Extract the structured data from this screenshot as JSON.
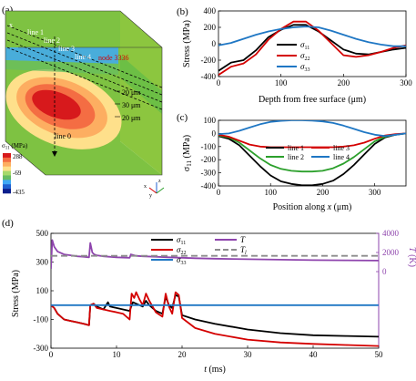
{
  "panel_labels": {
    "a": "(a)",
    "b": "(b)",
    "c": "(c)",
    "d": "(d)"
  },
  "panel_a": {
    "line_labels": [
      "line 1",
      "line 2",
      "line 3",
      "line 4",
      "line 0"
    ],
    "node_label": "node 3336",
    "depth_labels": [
      "20 μm",
      "30 μm",
      "20 μm"
    ],
    "colorbar": {
      "title": "σ11 (MPa)",
      "tick_labels": [
        "288",
        "-69",
        "-435"
      ],
      "colors": [
        "#d7191c",
        "#f46d43",
        "#fdae61",
        "#fee08b",
        "#a6d96a",
        "#66bd63",
        "#3fa9f5",
        "#1f60d0",
        "#0a1e8c"
      ]
    },
    "axes": {
      "x": "x",
      "y": "y",
      "z": "z"
    }
  },
  "chart_data": [
    {
      "id": "b",
      "type": "line",
      "xlabel": "Depth from free surface (μm)",
      "ylabel": "Stress (MPa)",
      "xlim": [
        0,
        300
      ],
      "ylim": [
        -400,
        400
      ],
      "xticks": [
        0,
        100,
        200,
        300
      ],
      "yticks": [
        -400,
        -200,
        0,
        200,
        400
      ],
      "series": [
        {
          "name": "σ11",
          "color": "#000000",
          "x": [
            0,
            20,
            40,
            60,
            80,
            100,
            120,
            140,
            160,
            180,
            200,
            220,
            240,
            260,
            280,
            300
          ],
          "y": [
            -330,
            -230,
            -200,
            -80,
            80,
            170,
            230,
            230,
            150,
            40,
            -70,
            -120,
            -130,
            -100,
            -70,
            -50
          ]
        },
        {
          "name": "σ22",
          "color": "#d40000",
          "x": [
            0,
            20,
            40,
            60,
            80,
            100,
            120,
            140,
            160,
            180,
            200,
            220,
            240,
            260,
            280,
            300
          ],
          "y": [
            -380,
            -280,
            -240,
            -130,
            50,
            180,
            270,
            270,
            160,
            10,
            -140,
            -160,
            -140,
            -100,
            -50,
            -20
          ]
        },
        {
          "name": "σ33",
          "color": "#1f77c4",
          "x": [
            0,
            20,
            40,
            60,
            80,
            100,
            120,
            140,
            160,
            180,
            200,
            220,
            240,
            260,
            280,
            300
          ],
          "y": [
            -20,
            10,
            60,
            110,
            150,
            180,
            200,
            210,
            200,
            160,
            110,
            60,
            20,
            -10,
            -30,
            -30
          ]
        }
      ]
    },
    {
      "id": "c",
      "type": "line",
      "xlabel": "Position along x (μm)",
      "ylabel": "σ11 (MPa)",
      "xlim": [
        0,
        360
      ],
      "ylim": [
        -400,
        100
      ],
      "xticks": [
        0,
        100,
        200,
        300
      ],
      "yticks": [
        -400,
        -300,
        -200,
        -100,
        0,
        100
      ],
      "series": [
        {
          "name": "line 1",
          "color": "#000000",
          "x": [
            0,
            20,
            40,
            60,
            80,
            100,
            120,
            140,
            160,
            180,
            200,
            220,
            240,
            260,
            280,
            300,
            320,
            340,
            360
          ],
          "y": [
            -20,
            -40,
            -90,
            -170,
            -250,
            -320,
            -365,
            -385,
            -395,
            -395,
            -385,
            -360,
            -310,
            -240,
            -160,
            -80,
            -30,
            -10,
            0
          ]
        },
        {
          "name": "line 2",
          "color": "#2ca02c",
          "x": [
            0,
            20,
            40,
            60,
            80,
            100,
            120,
            140,
            160,
            180,
            200,
            220,
            240,
            260,
            280,
            300,
            320,
            340,
            360
          ],
          "y": [
            -15,
            -30,
            -70,
            -130,
            -190,
            -240,
            -270,
            -285,
            -290,
            -290,
            -285,
            -265,
            -230,
            -180,
            -120,
            -60,
            -25,
            -8,
            0
          ]
        },
        {
          "name": "line 3",
          "color": "#d40000",
          "x": [
            0,
            20,
            40,
            60,
            80,
            100,
            120,
            140,
            160,
            180,
            200,
            220,
            240,
            260,
            280,
            300,
            320,
            340,
            360
          ],
          "y": [
            -10,
            -25,
            -55,
            -85,
            -100,
            -105,
            -105,
            -105,
            -105,
            -105,
            -105,
            -105,
            -100,
            -90,
            -70,
            -40,
            -15,
            -5,
            0
          ]
        },
        {
          "name": "line 4",
          "color": "#1f77c4",
          "x": [
            0,
            20,
            40,
            60,
            80,
            100,
            120,
            140,
            160,
            180,
            200,
            220,
            240,
            260,
            280,
            300,
            320,
            340,
            360
          ],
          "y": [
            -5,
            0,
            20,
            45,
            70,
            88,
            96,
            100,
            100,
            98,
            92,
            80,
            60,
            35,
            10,
            -10,
            -20,
            -10,
            0
          ]
        }
      ]
    },
    {
      "id": "d",
      "type": "line",
      "xlabel": "t (ms)",
      "ylabel": "Stress (MPa)",
      "y2label": "T (K)",
      "xlim": [
        0,
        50
      ],
      "ylim": [
        -300,
        500
      ],
      "y2lim": [
        -8000,
        4000
      ],
      "xticks": [
        0,
        10,
        20,
        30,
        40,
        50
      ],
      "yticks": [
        -300,
        -100,
        100,
        300,
        500
      ],
      "yticklabels": [
        "-300",
        "-100",
        "100",
        "300",
        "500"
      ],
      "y2ticks": [
        0,
        2000,
        4000
      ],
      "series": [
        {
          "name": "σ11",
          "color": "#000000",
          "axis": "left",
          "x": [
            0,
            0.5,
            1,
            2,
            3,
            4,
            5,
            5.8,
            6,
            6.5,
            7,
            8,
            8.7,
            9,
            9.5,
            10,
            11,
            12,
            12.5,
            13,
            14,
            14.5,
            15,
            16,
            17,
            17.5,
            18,
            18.5,
            19,
            19.5,
            20,
            22,
            25,
            30,
            35,
            40,
            45,
            50
          ],
          "y": [
            0,
            -20,
            -60,
            -100,
            -110,
            -120,
            -130,
            -140,
            0,
            10,
            -10,
            -30,
            20,
            -10,
            -15,
            -20,
            -30,
            -40,
            20,
            10,
            -10,
            30,
            0,
            -40,
            -60,
            60,
            0,
            -20,
            70,
            60,
            -70,
            -100,
            -130,
            -170,
            -195,
            -210,
            -215,
            -220
          ]
        },
        {
          "name": "σ22",
          "color": "#d40000",
          "axis": "left",
          "x": [
            0,
            0.5,
            1,
            2,
            3,
            4,
            5,
            5.8,
            6,
            6.5,
            7,
            8,
            9,
            10,
            11,
            12,
            12.3,
            12.7,
            13,
            13.5,
            14,
            14.5,
            15,
            16,
            17,
            17.5,
            18,
            18.5,
            19,
            19.5,
            20,
            22,
            25,
            30,
            35,
            40,
            45,
            50
          ],
          "y": [
            0,
            -20,
            -60,
            -100,
            -110,
            -120,
            -130,
            -140,
            0,
            10,
            -20,
            -30,
            -40,
            -50,
            -60,
            -100,
            80,
            50,
            90,
            40,
            0,
            80,
            30,
            -50,
            -80,
            80,
            -10,
            -60,
            90,
            70,
            -90,
            -160,
            -200,
            -240,
            -260,
            -270,
            -278,
            -285
          ]
        },
        {
          "name": "σ33",
          "color": "#1f77c4",
          "axis": "left",
          "x": [
            0,
            50
          ],
          "y": [
            0,
            0
          ]
        },
        {
          "name": "T",
          "color": "#8e44ad",
          "axis": "right",
          "x": [
            0,
            0.2,
            0.5,
            1,
            2,
            3,
            4,
            5,
            5.8,
            6,
            6.3,
            6.6,
            7,
            8,
            10,
            12,
            12.2,
            13,
            14,
            16,
            18,
            20,
            22,
            25,
            30,
            35,
            40,
            45,
            50
          ],
          "y": [
            300,
            3300,
            2600,
            2100,
            1800,
            1700,
            1600,
            1550,
            1500,
            3000,
            2000,
            1800,
            1700,
            1600,
            1500,
            1450,
            1800,
            1650,
            1600,
            1550,
            1500,
            1450,
            1400,
            1350,
            1300,
            1250,
            1200,
            1180,
            1150
          ]
        },
        {
          "name": "Tl",
          "color": "#8c8c8c",
          "axis": "right",
          "dashed": true,
          "x": [
            0,
            50
          ],
          "y": [
            1650,
            1650
          ]
        }
      ]
    }
  ]
}
